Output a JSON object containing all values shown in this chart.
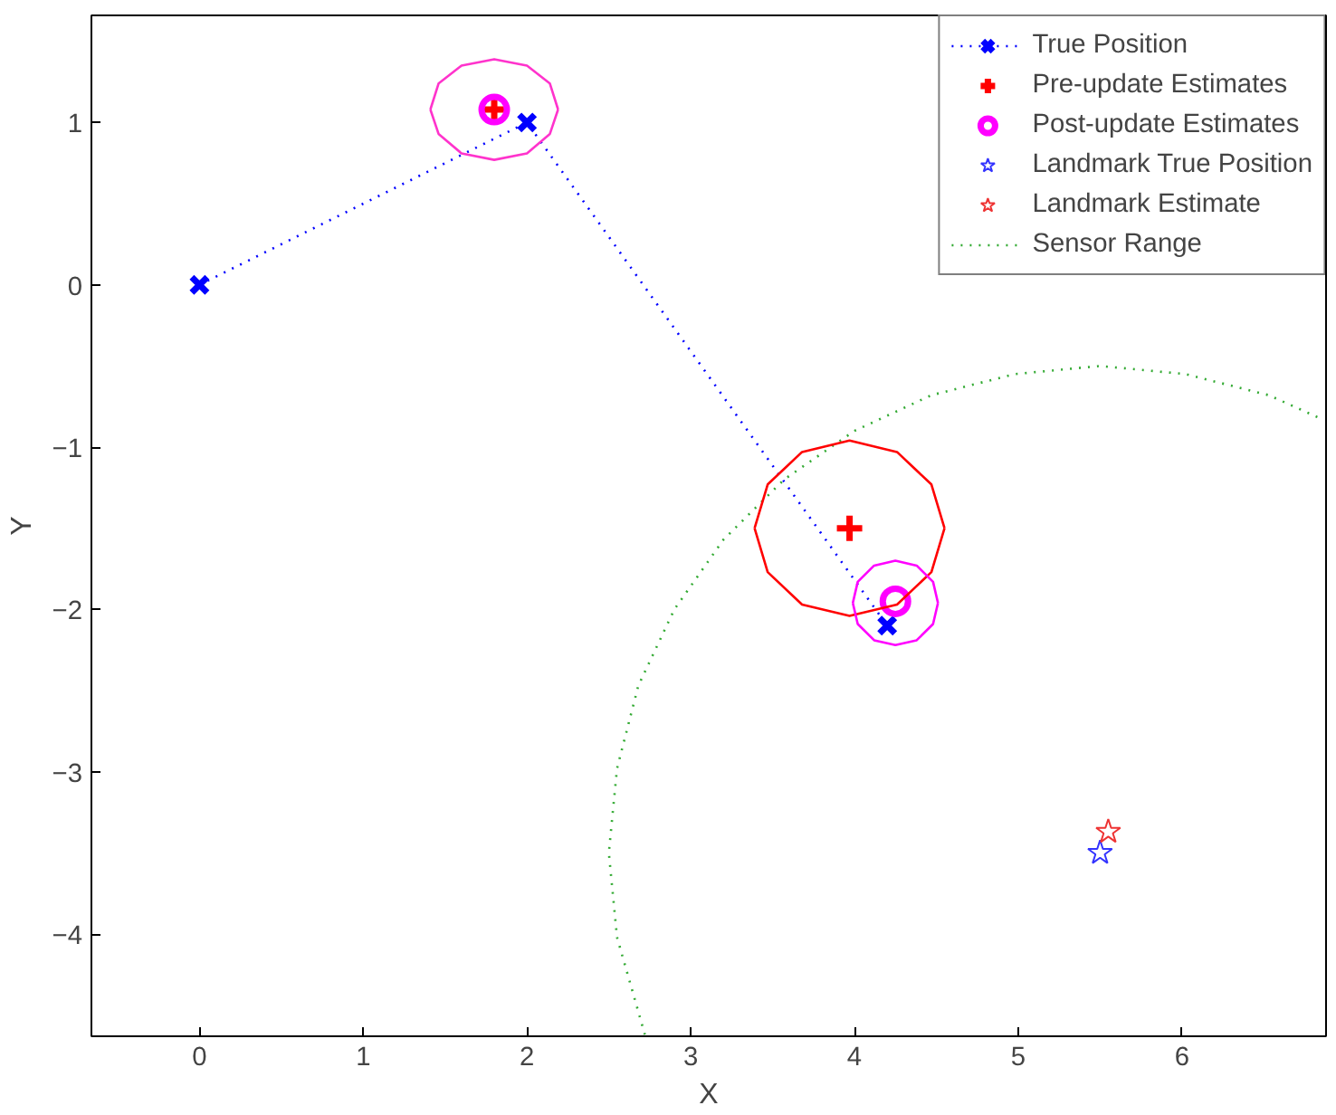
{
  "chart_data": {
    "type": "scatter",
    "xlabel": "X",
    "ylabel": "Y",
    "xlim": [
      -0.66,
      6.88
    ],
    "ylim": [
      -4.63,
      1.66
    ],
    "xticks": [
      0,
      1,
      2,
      3,
      4,
      5,
      6
    ],
    "yticks": [
      -4,
      -3,
      -2,
      -1,
      0,
      1
    ],
    "grid": false,
    "legend": "top right",
    "series": [
      {
        "name": "True Position",
        "type": "line",
        "marker": "x",
        "line_style": "dotted",
        "color": "#0000ff",
        "x": [
          0,
          2,
          4.2
        ],
        "values": [
          0,
          1,
          -2.1
        ]
      },
      {
        "name": "Pre-update Estimates",
        "marker": "cross",
        "color": "#ff0000",
        "x": [
          1.8,
          3.97
        ],
        "values": [
          1.08,
          -1.5
        ]
      },
      {
        "name": "Post-update Estimates",
        "marker": "circle",
        "color": "#ff00ff",
        "x": [
          1.8,
          4.25
        ],
        "values": [
          1.08,
          -1.95
        ]
      },
      {
        "name": "Landmark True Position",
        "marker": "star",
        "color": "#3333ff",
        "x": [
          5.5
        ],
        "values": [
          -3.5
        ]
      },
      {
        "name": "Landmark Estimate",
        "marker": "star",
        "color": "#ee3333",
        "x": [
          5.55
        ],
        "values": [
          -3.37
        ]
      },
      {
        "name": "Sensor Range",
        "type": "line",
        "marker": "none",
        "line_style": "dotted",
        "color": "#33aa33",
        "x": [
          2.72,
          2.55,
          2.5,
          2.55,
          2.68,
          2.9,
          3.2,
          3.57,
          4.0,
          4.47,
          4.98,
          5.5,
          6.02,
          6.53,
          6.86
        ],
        "values": [
          -4.62,
          -4.02,
          -3.5,
          -2.98,
          -2.47,
          -2.0,
          -1.57,
          -1.2,
          -0.9,
          -0.68,
          -0.55,
          -0.5,
          -0.55,
          -0.68,
          -0.83
        ]
      },
      {
        "type": "line",
        "marker": "none",
        "line_style": "solid",
        "color": "#ff33cc",
        "x": [
          1.41,
          1.46,
          1.6,
          1.8,
          2.0,
          2.14,
          2.19
        ],
        "values": [
          1.08,
          1.24,
          1.35,
          1.39,
          1.35,
          1.24,
          1.08
        ]
      },
      {
        "type": "line",
        "marker": "none",
        "line_style": "solid",
        "color": "#ff33cc",
        "x": [
          1.41,
          1.46,
          1.6,
          1.8,
          2.0,
          2.14,
          2.19
        ],
        "values": [
          1.08,
          0.93,
          0.81,
          0.77,
          0.81,
          0.93,
          1.08
        ]
      },
      {
        "type": "line",
        "marker": "none",
        "line_style": "solid",
        "color": "#ff0000",
        "x": [
          3.39,
          3.47,
          3.68,
          3.97,
          4.26,
          4.47,
          4.55
        ],
        "values": [
          -1.5,
          -1.23,
          -1.03,
          -0.96,
          -1.03,
          -1.23,
          -1.5
        ]
      },
      {
        "type": "line",
        "marker": "none",
        "line_style": "solid",
        "color": "#ff0000",
        "x": [
          3.39,
          3.47,
          3.68,
          3.97,
          4.26,
          4.47,
          4.55
        ],
        "values": [
          -1.5,
          -1.77,
          -1.97,
          -2.04,
          -1.97,
          -1.77,
          -1.5
        ]
      },
      {
        "type": "line",
        "marker": "none",
        "line_style": "solid",
        "color": "#ff00ff",
        "x": [
          3.99,
          4.02,
          4.12,
          4.25,
          4.38,
          4.48,
          4.51
        ],
        "values": [
          -1.96,
          -1.83,
          -1.73,
          -1.7,
          -1.73,
          -1.83,
          -1.96
        ]
      },
      {
        "type": "line",
        "marker": "none",
        "line_style": "solid",
        "color": "#ff00ff",
        "x": [
          3.99,
          4.02,
          4.12,
          4.25,
          4.38,
          4.48,
          4.51
        ],
        "values": [
          -1.96,
          -2.09,
          -2.19,
          -2.22,
          -2.19,
          -2.09,
          -1.96
        ]
      }
    ]
  }
}
